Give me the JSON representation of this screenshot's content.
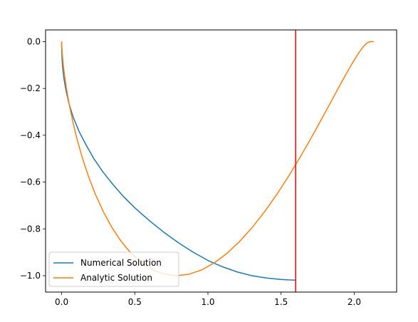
{
  "chart_data": {
    "type": "line",
    "xlim": [
      -0.11,
      2.29
    ],
    "ylim": [
      -1.07,
      0.05
    ],
    "xticks": [
      0.0,
      0.5,
      1.0,
      1.5,
      2.0
    ],
    "xtick_labels": [
      "0.0",
      "0.5",
      "1.0",
      "1.5",
      "2.0"
    ],
    "yticks": [
      0.0,
      -0.2,
      -0.4,
      -0.6,
      -0.8,
      -1.0
    ],
    "ytick_labels": [
      "0.0",
      "−0.2",
      "−0.4",
      "−0.6",
      "−0.8",
      "−1.0"
    ],
    "grid": false,
    "legend_position": "lower-left",
    "series": [
      {
        "name": "Numerical Solution",
        "color": "#1f77b4",
        "x": [
          0.0,
          0.0,
          0.001,
          0.003,
          0.007,
          0.013,
          0.02,
          0.03,
          0.05,
          0.08,
          0.12,
          0.17,
          0.22,
          0.28,
          0.35,
          0.42,
          0.5,
          0.6,
          0.7,
          0.8,
          0.9,
          1.0,
          1.1,
          1.2,
          1.3,
          1.4,
          1.5,
          1.55,
          1.6
        ],
        "y": [
          0.0,
          -0.02,
          -0.045,
          -0.078,
          -0.11,
          -0.145,
          -0.175,
          -0.21,
          -0.265,
          -0.325,
          -0.385,
          -0.445,
          -0.5,
          -0.555,
          -0.61,
          -0.66,
          -0.71,
          -0.765,
          -0.815,
          -0.86,
          -0.9,
          -0.935,
          -0.962,
          -0.984,
          -1.0,
          -1.01,
          -1.016,
          -1.018,
          -1.019
        ]
      },
      {
        "name": "Analytic Solution",
        "color": "#ff7f0e",
        "x": [
          0.0,
          0.0002,
          0.0013,
          0.0045,
          0.0105,
          0.0202,
          0.0342,
          0.0531,
          0.0774,
          0.1074,
          0.1431,
          0.1847,
          0.2321,
          0.2851,
          0.3434,
          0.4069,
          0.475,
          0.5474,
          0.6236,
          0.7031,
          0.7854,
          0.8698,
          0.9558,
          1.0427,
          1.1299,
          1.2168,
          1.3026,
          1.3869,
          1.4689,
          1.5482,
          1.6242,
          1.6963,
          1.7641,
          1.8272,
          1.885,
          1.9373,
          1.9838,
          2.0242,
          2.0583,
          2.0861,
          2.1074,
          2.1225,
          2.1313,
          2.134
        ],
        "y": [
          0.0,
          -0.0062,
          -0.0244,
          -0.0545,
          -0.0955,
          -0.1464,
          -0.2061,
          -0.273,
          -0.3455,
          -0.4218,
          -0.5,
          -0.5782,
          -0.6545,
          -0.727,
          -0.7939,
          -0.8536,
          -0.9045,
          -0.9455,
          -0.9756,
          -0.9938,
          -1.0,
          -0.9938,
          -0.9756,
          -0.9455,
          -0.9045,
          -0.8536,
          -0.7939,
          -0.727,
          -0.6545,
          -0.5782,
          -0.5,
          -0.4218,
          -0.3455,
          -0.273,
          -0.2061,
          -0.1464,
          -0.0955,
          -0.0545,
          -0.0244,
          -0.0062,
          0.0,
          0.0,
          0.0,
          0.0
        ]
      }
    ],
    "vertical_line": {
      "x": 1.6,
      "color": "#ff0000"
    }
  }
}
